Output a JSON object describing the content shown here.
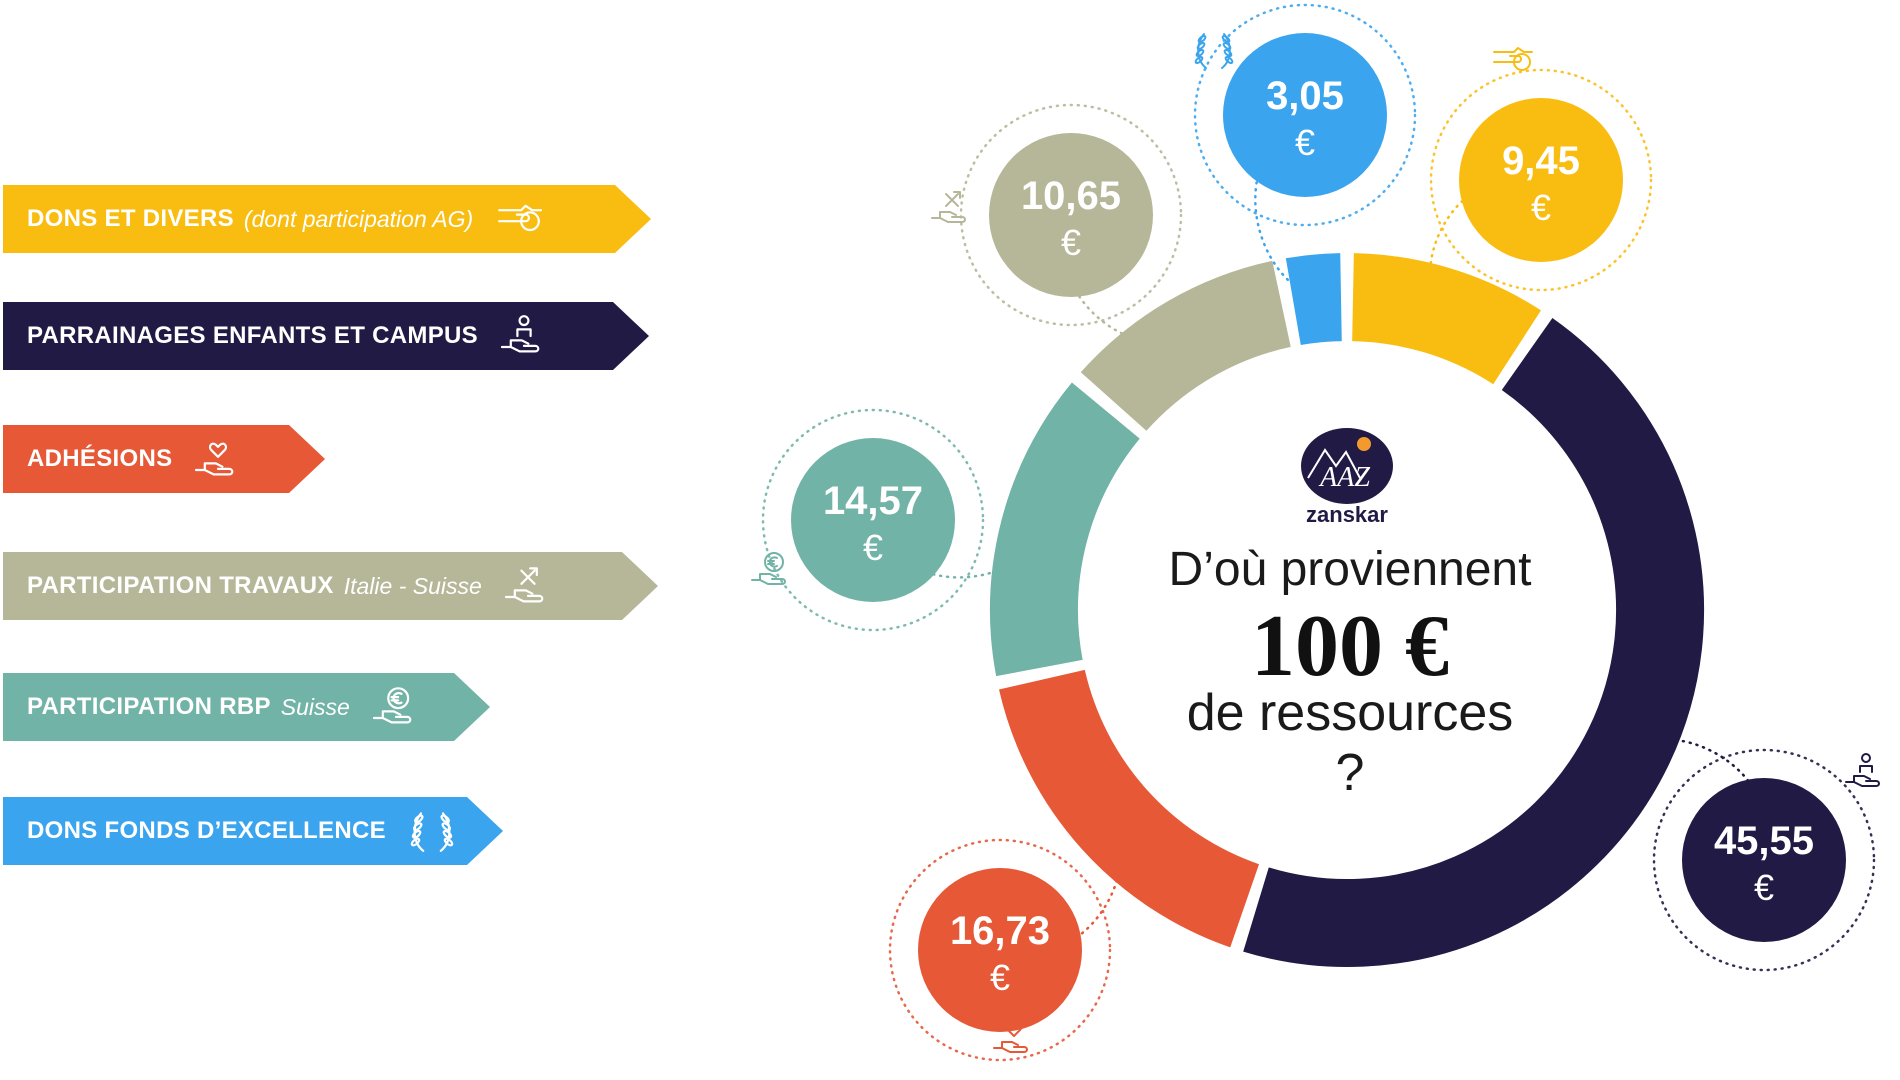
{
  "legend": [
    {
      "label": "DONS ET DIVERS",
      "sub": "(dont participation AG)",
      "color": "#f9bd12",
      "icon": "coin-hand-icon"
    },
    {
      "label": "PARRAINAGES ENFANTS ET CAMPUS",
      "sub": "",
      "color": "#201a45",
      "icon": "child-hand-icon"
    },
    {
      "label": "ADHÉSIONS",
      "sub": "",
      "color": "#e65836",
      "icon": "heart-hand-icon"
    },
    {
      "label": "PARTICIPATION TRAVAUX",
      "sub": "Italie - Suisse",
      "color": "#b6b698",
      "icon": "tools-hand-icon"
    },
    {
      "label": "PARTICIPATION RBP",
      "sub": "Suisse",
      "color": "#71b3a7",
      "icon": "euro-hand-icon"
    },
    {
      "label": "DONS FONDS D’EXCELLENCE",
      "sub": "",
      "color": "#3aa4ee",
      "icon": "laurel-icon"
    }
  ],
  "center": {
    "line1": "D’où proviennent",
    "line2": "100 €",
    "line3": "de ressources",
    "line4": "?"
  },
  "logo": {
    "letters": "AAZ",
    "name": "zanskar"
  },
  "chart_data": {
    "type": "pie",
    "variant": "donut",
    "title": "D’où proviennent 100 € de ressources ?",
    "unit": "€",
    "categories": [
      "DONS ET DIVERS (dont participation AG)",
      "PARRAINAGES ENFANTS ET CAMPUS",
      "ADHÉSIONS",
      "PARTICIPATION TRAVAUX Italie - Suisse",
      "PARTICIPATION RBP Suisse",
      "DONS FONDS D’EXCELLENCE"
    ],
    "values": [
      9.45,
      45.55,
      16.73,
      10.65,
      14.57,
      3.05
    ],
    "labels": [
      "9,45",
      "45,55",
      "16,73",
      "10,65",
      "14,57",
      "3,05"
    ],
    "colors": [
      "#f9bd12",
      "#201a45",
      "#e65836",
      "#b6b698",
      "#71b3a7",
      "#3aa4ee"
    ],
    "order_clockwise_from_top": [
      0,
      1,
      2,
      4,
      3,
      5
    ],
    "icons": [
      "coin-hand-icon",
      "child-hand-icon",
      "heart-hand-icon",
      "tools-hand-icon",
      "euro-hand-icon",
      "laurel-icon"
    ]
  }
}
